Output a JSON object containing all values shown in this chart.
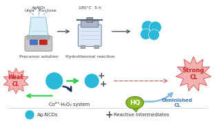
{
  "bg_color": "#ffffff",
  "cyan_color": "#29b8d8",
  "green_arrow_color": "#33cc44",
  "dashed_arrow_color": "#cc7777",
  "light_blue_arrow_color": "#88bbdd",
  "weak_cl_color": "#f5b0b0",
  "strong_cl_color": "#f5b0b0",
  "hq_color": "#88bb22",
  "gray_arrow_color": "#555555",
  "navy_arrow_color": "#1a2e5a",
  "text_co_h2o2": "Co²⁺·H₂O₂ system",
  "text_weak": "Weak\nCL",
  "text_strong": "Strong\nCL",
  "text_diminished": "Diminished\nCL",
  "text_hq": "HQ",
  "text_precursor": "Precursor solution",
  "text_hydrothermal": "Hydrothermal reaction",
  "text_temp": "180°C  5 h",
  "text_agno3": "AgNO₃",
  "text_urea": "Urea",
  "text_fructose": "Fructose",
  "text_ag_ncds": "Ag-NCDs",
  "text_reactive": "Reactive intermediates",
  "figsize": [
    3.12,
    1.89
  ],
  "dpi": 100
}
